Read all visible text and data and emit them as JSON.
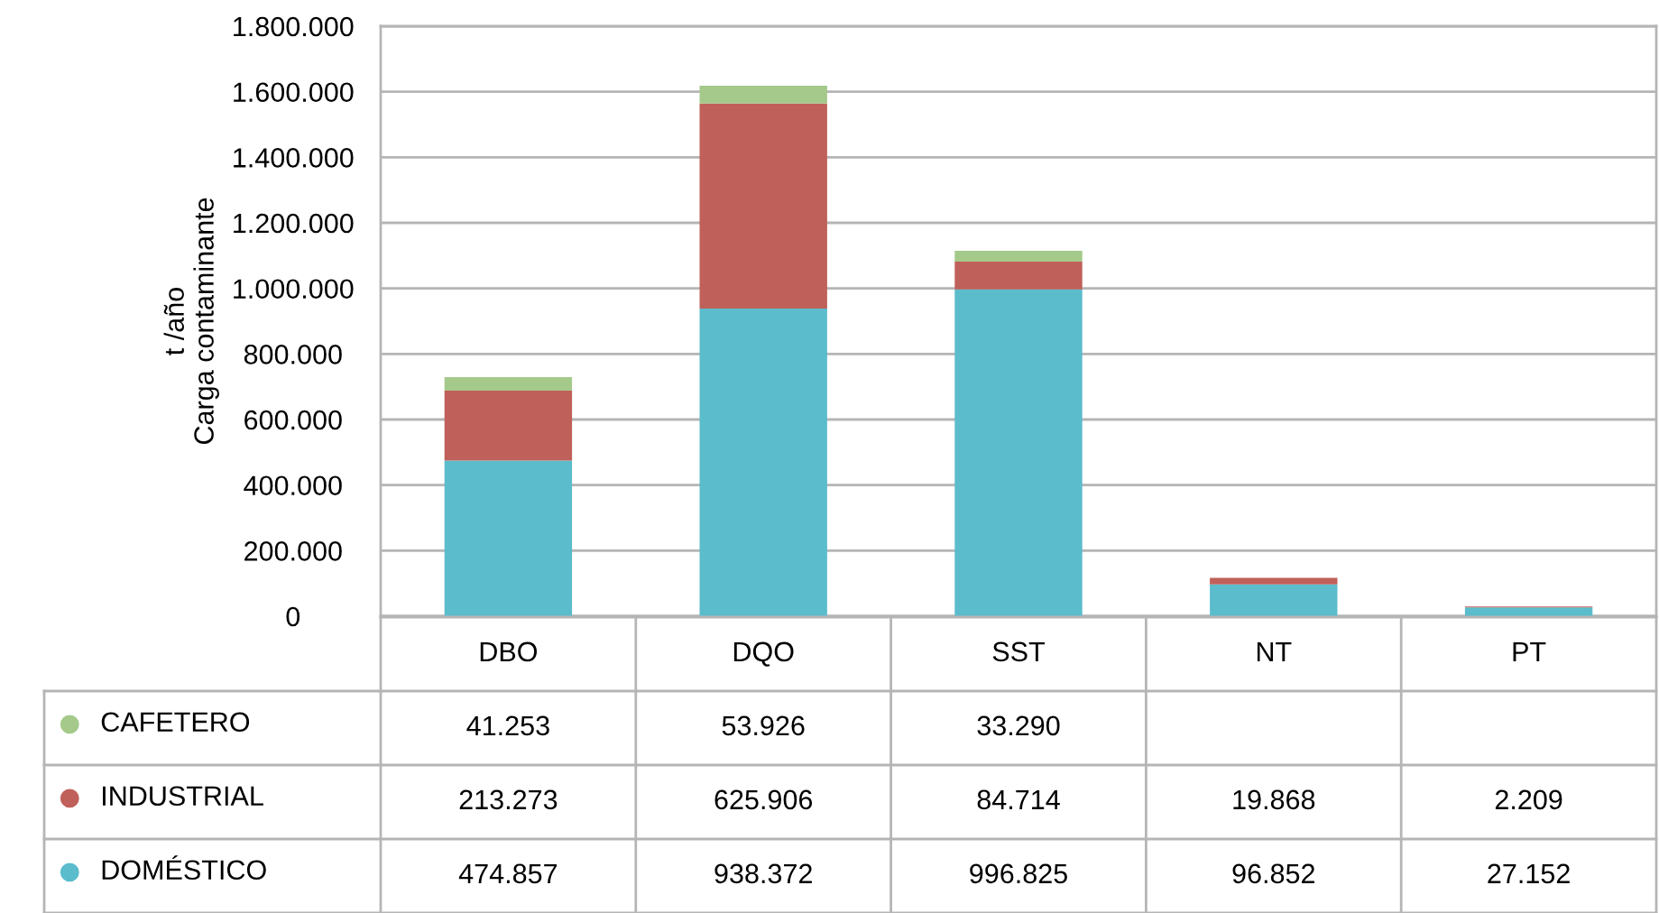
{
  "chart_data": {
    "type": "bar",
    "stacked": true,
    "ylabel": "t /año\nCarga contaminante",
    "categories": [
      "DBO",
      "DQO",
      "SST",
      "NT",
      "PT"
    ],
    "series": [
      {
        "name": "DOMÉSTICO",
        "color": "#5bbccc",
        "values": [
          474857,
          938372,
          996825,
          96852,
          27152
        ],
        "value_labels": [
          "474.857",
          "938.372",
          "996.825",
          "96.852",
          "27.152"
        ]
      },
      {
        "name": "INDUSTRIAL",
        "color": "#c0605a",
        "values": [
          213273,
          625906,
          84714,
          19868,
          2209
        ],
        "value_labels": [
          "213.273",
          "625.906",
          "84.714",
          "19.868",
          "2.209"
        ]
      },
      {
        "name": "CAFETERO",
        "color": "#a4c98a",
        "values": [
          41253,
          53926,
          33290,
          null,
          null
        ],
        "value_labels": [
          "41.253",
          "53.926",
          "33.290",
          null,
          null
        ]
      }
    ],
    "ylim": [
      0,
      1800000
    ],
    "yticks": [
      {
        "value": 0,
        "label": "0"
      },
      {
        "value": 200000,
        "label": "200.000"
      },
      {
        "value": 400000,
        "label": "400.000"
      },
      {
        "value": 600000,
        "label": "600.000"
      },
      {
        "value": 800000,
        "label": "800.000"
      },
      {
        "value": 1000000,
        "label": "1.000.000"
      },
      {
        "value": 1200000,
        "label": "1.200.000"
      },
      {
        "value": 1400000,
        "label": "1.400.000"
      },
      {
        "value": 1600000,
        "label": "1.600.000"
      },
      {
        "value": 1800000,
        "label": "1.800.000"
      }
    ],
    "grid": "y",
    "legend": "bottom"
  }
}
